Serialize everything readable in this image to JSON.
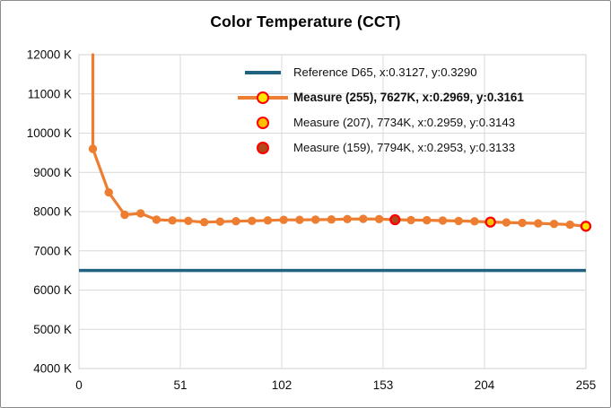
{
  "title": "Color Temperature (CCT)",
  "chart_data": {
    "type": "line",
    "title": "Color Temperature (CCT)",
    "x_axis": {
      "min": 0,
      "max": 255,
      "ticks": [
        0,
        51,
        102,
        153,
        204,
        255
      ],
      "tick_labels": [
        "0",
        "51",
        "102",
        "153",
        "204",
        "255"
      ]
    },
    "y_axis": {
      "min": 4000,
      "max": 12000,
      "unit": "K",
      "ticks": [
        {
          "value": 12000,
          "label": "12000 K"
        },
        {
          "value": 11000,
          "label": "11000 K"
        },
        {
          "value": 10000,
          "label": "10000 K"
        },
        {
          "value": 9000,
          "label": "9000 K"
        },
        {
          "value": 8000,
          "label": "8000 K"
        },
        {
          "value": 7000,
          "label": "7000 K"
        },
        {
          "value": 6000,
          "label": "6000 K"
        },
        {
          "value": 5000,
          "label": "5000 K"
        },
        {
          "value": 4000,
          "label": "4000 K"
        }
      ]
    },
    "grid": true,
    "colors": {
      "gridline": "#d9d9d9",
      "plot_border": "#d9d9d9",
      "reference_line": "#20627f",
      "measure_line": "#ed7d31",
      "marker_default": "#ed7d31",
      "highlight_ring": "#ff0000",
      "highlight_255_fill": "#ffe600",
      "highlight_207_fill": "#ffc000",
      "highlight_159_fill": "#af4a1e",
      "legend_background": "#d9d9d9",
      "axis_text": "#0d0d0d"
    },
    "reference": {
      "name": "Reference D65",
      "value": 6500,
      "x": 0.3127,
      "y": 0.329
    },
    "series": [
      {
        "name": "Measure",
        "offscale_entry": true,
        "x": [
          7,
          15,
          23,
          31,
          39,
          47,
          55,
          63,
          71,
          79,
          87,
          95,
          103,
          111,
          119,
          127,
          135,
          143,
          151,
          159,
          167,
          175,
          183,
          191,
          199,
          207,
          215,
          223,
          231,
          239,
          247,
          255
        ],
        "cct": [
          9600,
          8490,
          7920,
          7955,
          7795,
          7775,
          7765,
          7730,
          7745,
          7755,
          7765,
          7775,
          7790,
          7790,
          7795,
          7800,
          7810,
          7815,
          7810,
          7794,
          7785,
          7780,
          7772,
          7762,
          7752,
          7734,
          7724,
          7712,
          7700,
          7688,
          7668,
          7627
        ],
        "highlights": [
          {
            "x": 255,
            "cct": 7627,
            "fill": "#ffe600",
            "stroke": "#ff0000"
          },
          {
            "x": 207,
            "cct": 7734,
            "fill": "#ffc000",
            "stroke": "#ff0000"
          },
          {
            "x": 159,
            "cct": 7794,
            "fill": "#af4a1e",
            "stroke": "#ff0000"
          }
        ]
      }
    ],
    "legend": {
      "position": "top-right",
      "entries": [
        {
          "label": "Reference D65, x:0.3127, y:0.3290",
          "swatch": "line",
          "line_color": "#20627f",
          "bold": false
        },
        {
          "label": "Measure (255), 7627K, x:0.2969, y:0.3161",
          "swatch": "line-marker",
          "line_color": "#ed7d31",
          "marker_fill": "#ffe600",
          "marker_stroke": "#ff0000",
          "bold": true
        },
        {
          "label": "Measure (207), 7734K, x:0.2959, y:0.3143",
          "swatch": "marker",
          "marker_fill": "#ffc000",
          "marker_stroke": "#ff0000",
          "bold": false
        },
        {
          "label": "Measure (159), 7794K, x:0.2953, y:0.3133",
          "swatch": "marker",
          "marker_fill": "#af4a1e",
          "marker_stroke": "#ff0000",
          "bold": false
        }
      ]
    }
  }
}
